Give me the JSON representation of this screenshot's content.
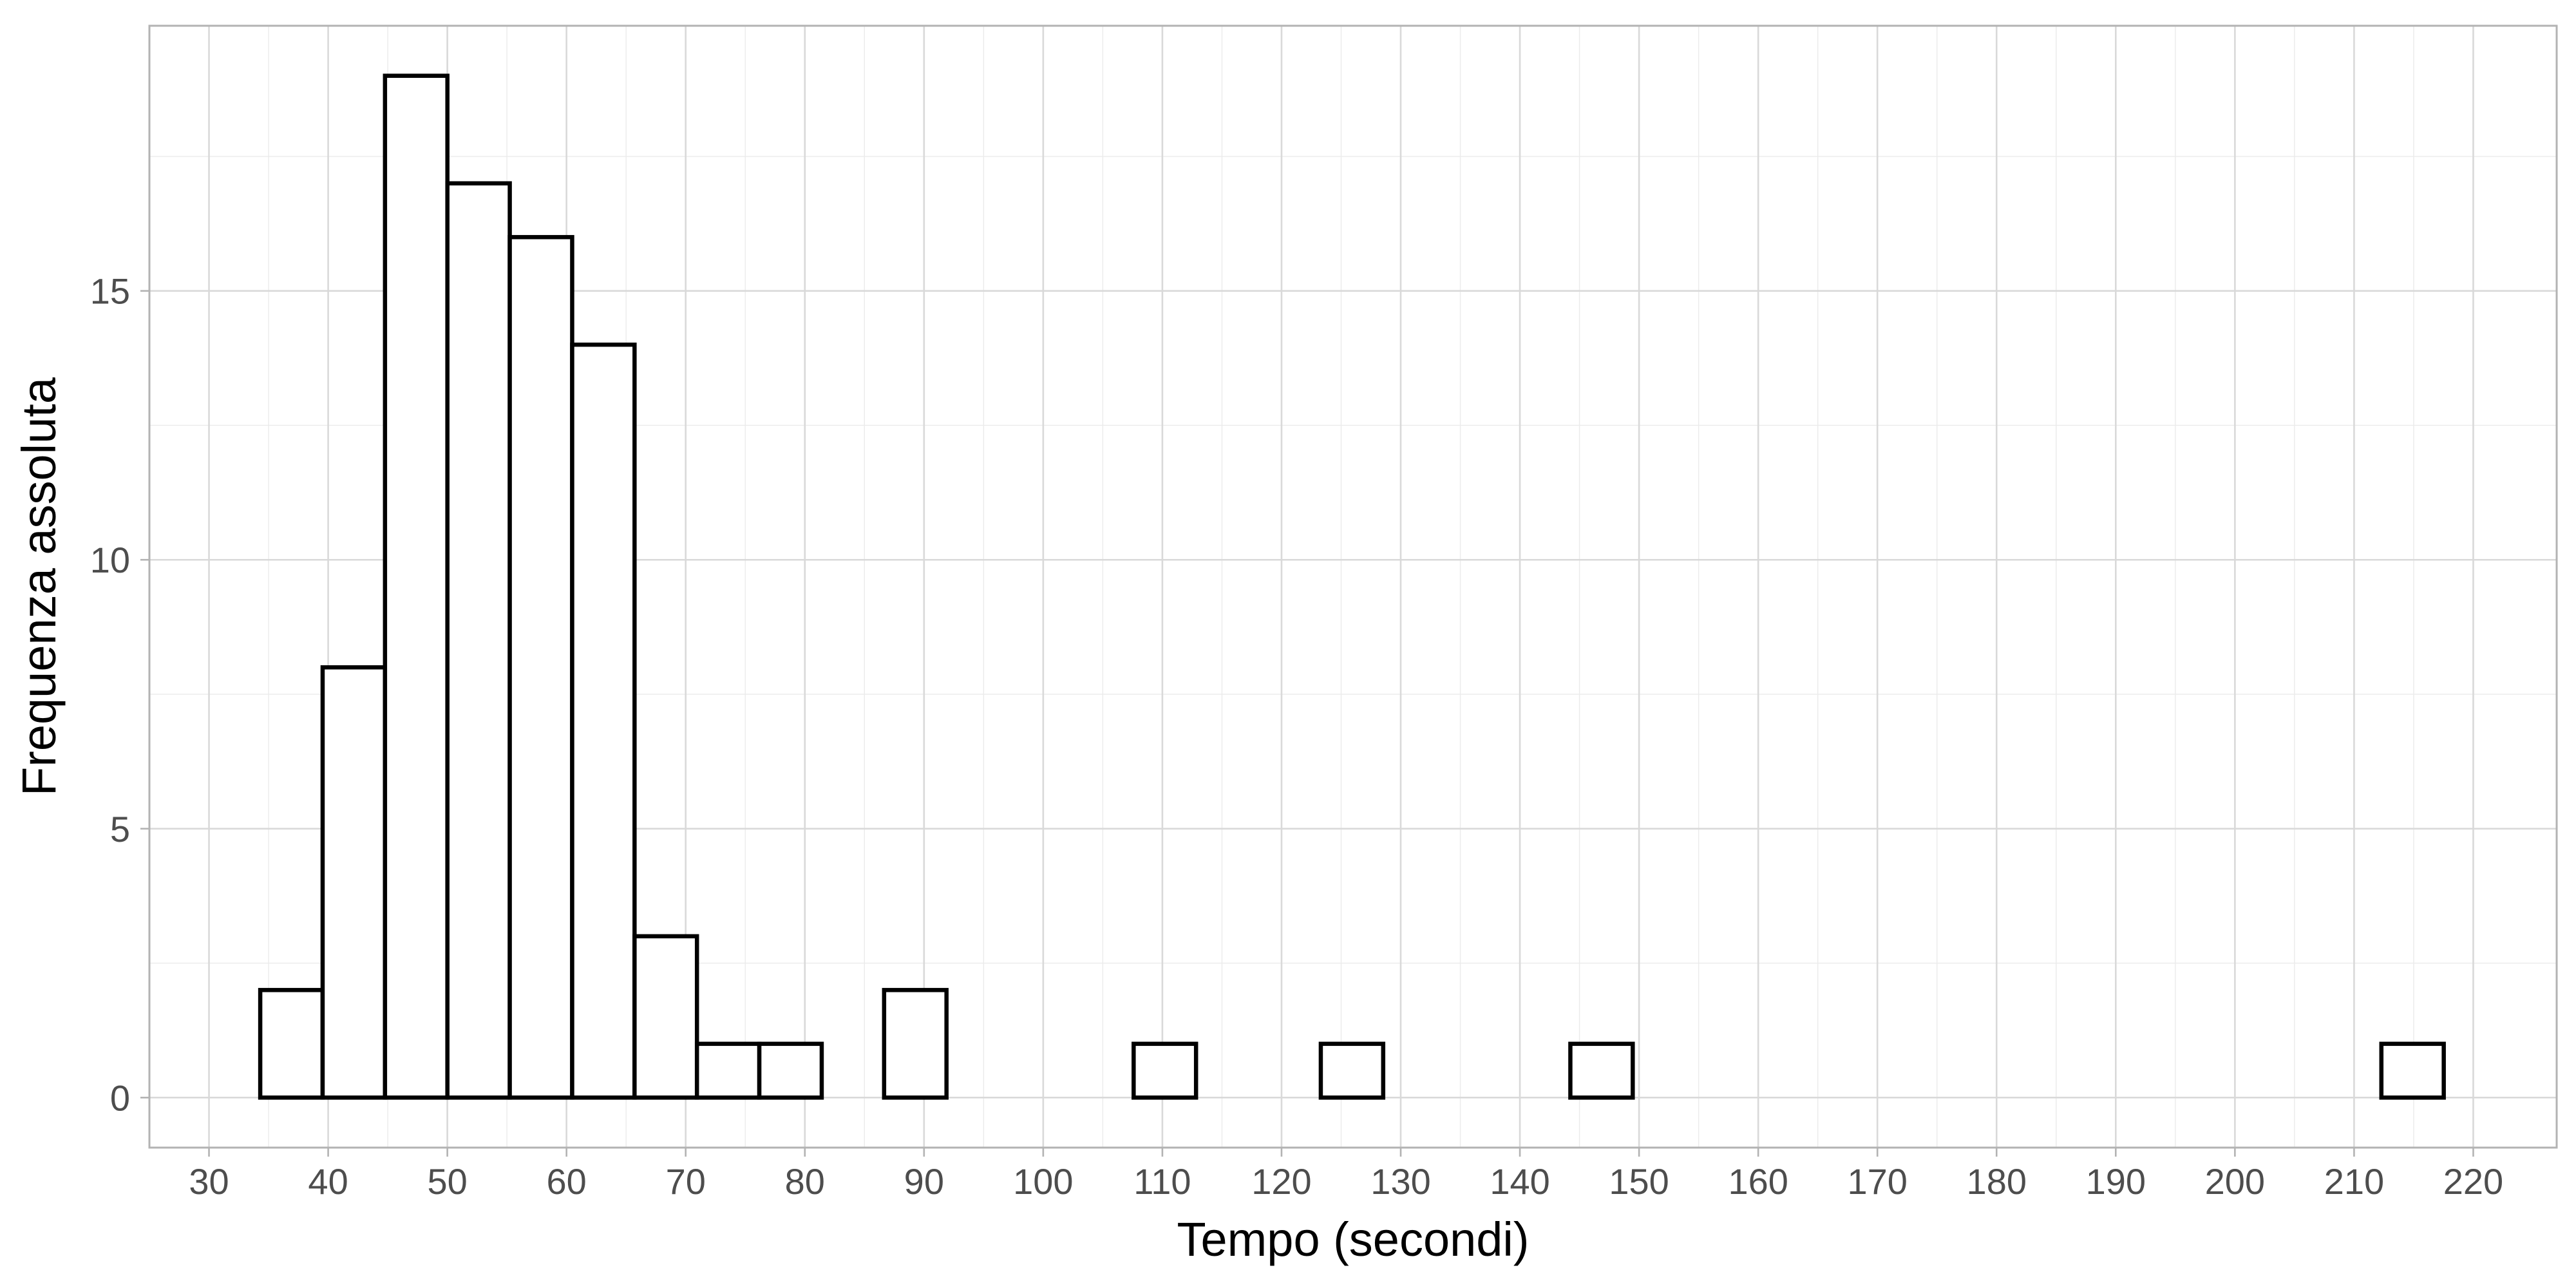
{
  "chart_data": {
    "type": "bar",
    "subtype": "histogram",
    "xlabel": "Tempo (secondi)",
    "ylabel": "Frequenza assoluta",
    "bin_width": 5.235,
    "bins": [
      {
        "x0": 34.3,
        "x1": 39.535,
        "count": 2
      },
      {
        "x0": 39.535,
        "x1": 44.77,
        "count": 8
      },
      {
        "x0": 44.77,
        "x1": 50.005,
        "count": 19
      },
      {
        "x0": 50.005,
        "x1": 55.24,
        "count": 17
      },
      {
        "x0": 55.24,
        "x1": 60.475,
        "count": 16
      },
      {
        "x0": 60.475,
        "x1": 65.71,
        "count": 14
      },
      {
        "x0": 65.71,
        "x1": 70.945,
        "count": 3
      },
      {
        "x0": 70.945,
        "x1": 76.18,
        "count": 1
      },
      {
        "x0": 76.18,
        "x1": 81.415,
        "count": 1
      },
      {
        "x0": 81.415,
        "x1": 86.65,
        "count": 0
      },
      {
        "x0": 86.65,
        "x1": 91.885,
        "count": 2
      },
      {
        "x0": 91.885,
        "x1": 97.12,
        "count": 0
      },
      {
        "x0": 97.12,
        "x1": 102.355,
        "count": 0
      },
      {
        "x0": 102.355,
        "x1": 107.59,
        "count": 0
      },
      {
        "x0": 107.59,
        "x1": 112.825,
        "count": 1
      },
      {
        "x0": 112.825,
        "x1": 118.06,
        "count": 0
      },
      {
        "x0": 118.06,
        "x1": 123.295,
        "count": 0
      },
      {
        "x0": 123.295,
        "x1": 128.53,
        "count": 1
      },
      {
        "x0": 128.53,
        "x1": 133.765,
        "count": 0
      },
      {
        "x0": 133.765,
        "x1": 139.0,
        "count": 0
      },
      {
        "x0": 139.0,
        "x1": 144.235,
        "count": 0
      },
      {
        "x0": 144.235,
        "x1": 149.47,
        "count": 1
      },
      {
        "x0": 149.47,
        "x1": 154.705,
        "count": 0
      },
      {
        "x0": 154.705,
        "x1": 159.94,
        "count": 0
      },
      {
        "x0": 159.94,
        "x1": 165.175,
        "count": 0
      },
      {
        "x0": 165.175,
        "x1": 170.41,
        "count": 0
      },
      {
        "x0": 170.41,
        "x1": 175.645,
        "count": 0
      },
      {
        "x0": 175.645,
        "x1": 180.88,
        "count": 0
      },
      {
        "x0": 180.88,
        "x1": 186.115,
        "count": 0
      },
      {
        "x0": 186.115,
        "x1": 191.35,
        "count": 0
      },
      {
        "x0": 191.35,
        "x1": 196.585,
        "count": 0
      },
      {
        "x0": 196.585,
        "x1": 201.82,
        "count": 0
      },
      {
        "x0": 201.82,
        "x1": 207.055,
        "count": 0
      },
      {
        "x0": 207.055,
        "x1": 212.29,
        "count": 0
      },
      {
        "x0": 212.29,
        "x1": 217.525,
        "count": 1
      }
    ],
    "xlim": [
      25,
      227
    ],
    "ylim": [
      -0.93,
      19.93
    ],
    "x_ticks": [
      30,
      40,
      50,
      60,
      70,
      80,
      90,
      100,
      110,
      120,
      130,
      140,
      150,
      160,
      170,
      180,
      190,
      200,
      210,
      220
    ],
    "x_tick_labels": [
      "30",
      "40",
      "50",
      "60",
      "70",
      "80",
      "90",
      "100",
      "110",
      "120",
      "130",
      "140",
      "150",
      "160",
      "170",
      "180",
      "190",
      "200",
      "210",
      "220"
    ],
    "y_ticks": [
      0,
      5,
      10,
      15
    ],
    "y_tick_labels": [
      "0",
      "5",
      "10",
      "15"
    ],
    "grid": true,
    "legend": "none",
    "colors": {
      "bar_fill": "#ffffff",
      "bar_stroke": "#000000",
      "grid_major": "#d9d9d9",
      "grid_minor": "#ebebeb",
      "panel_border": "#b3b3b3"
    }
  }
}
